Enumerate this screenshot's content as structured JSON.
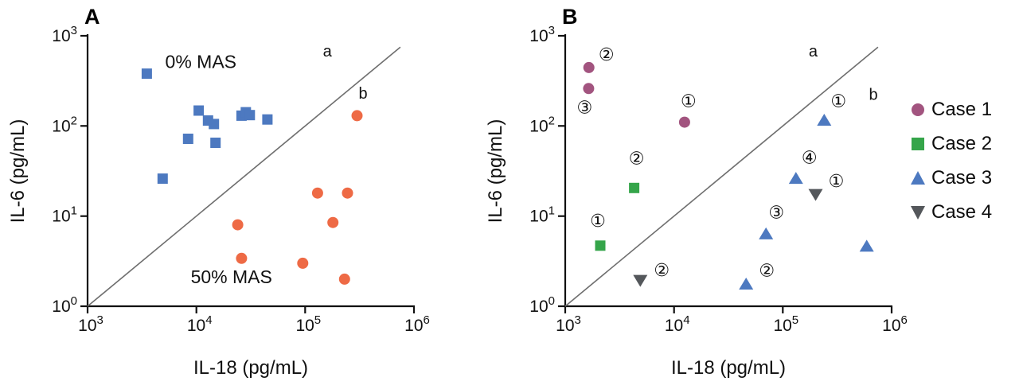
{
  "legend": {
    "items": [
      {
        "label": "Case 1",
        "marker": "circle",
        "color": "#a2547f"
      },
      {
        "label": "Case 2",
        "marker": "square",
        "color": "#35a54a"
      },
      {
        "label": "Case 3",
        "marker": "triangle-up",
        "color": "#4d79c0"
      },
      {
        "label": "Case 4",
        "marker": "triangle-down",
        "color": "#54575b"
      }
    ]
  },
  "chart_data": [
    {
      "type": "scatter",
      "panel_label": "A",
      "xlabel": "IL-18 (pg/mL)",
      "ylabel": "IL-6 (pg/mL)",
      "xscale": "log",
      "yscale": "log",
      "xlim": [
        1000,
        1000000
      ],
      "ylim": [
        1,
        1000
      ],
      "xticks": [
        1000,
        10000,
        100000,
        1000000
      ],
      "yticks": [
        1,
        10,
        100,
        1000
      ],
      "xtick_labels": [
        "10^3",
        "10^4",
        "10^5",
        "10^6"
      ],
      "ytick_labels": [
        "10^0",
        "10^1",
        "10^2",
        "10^3"
      ],
      "grid": false,
      "reference_line": {
        "x1": 1000,
        "y1": 1,
        "x2": 750000,
        "y2": 750,
        "color": "#6e6e6e",
        "labels": [
          {
            "text": "a",
            "x": 160000,
            "y": 590
          },
          {
            "text": "b",
            "x": 340000,
            "y": 200
          }
        ]
      },
      "annotations": [
        {
          "text": "0% MAS",
          "x": 11000,
          "y": 440
        },
        {
          "text": "50% MAS",
          "x": 21000,
          "y": 1.8
        }
      ],
      "series": [
        {
          "name": "0% MAS",
          "marker": "square",
          "color": "#4d79c0",
          "points": [
            {
              "x": 3500,
              "y": 380
            },
            {
              "x": 4900,
              "y": 26
            },
            {
              "x": 8400,
              "y": 72
            },
            {
              "x": 10500,
              "y": 148
            },
            {
              "x": 12800,
              "y": 115
            },
            {
              "x": 14500,
              "y": 105
            },
            {
              "x": 15000,
              "y": 65
            },
            {
              "x": 26000,
              "y": 130
            },
            {
              "x": 28500,
              "y": 142
            },
            {
              "x": 31000,
              "y": 132
            },
            {
              "x": 45000,
              "y": 118
            }
          ]
        },
        {
          "name": "50% MAS",
          "marker": "circle",
          "color": "#ee6a45",
          "points": [
            {
              "x": 24000,
              "y": 8
            },
            {
              "x": 26000,
              "y": 3.4
            },
            {
              "x": 95000,
              "y": 3
            },
            {
              "x": 130000,
              "y": 18
            },
            {
              "x": 180000,
              "y": 8.5
            },
            {
              "x": 245000,
              "y": 18
            },
            {
              "x": 230000,
              "y": 2
            },
            {
              "x": 300000,
              "y": 130
            }
          ]
        }
      ]
    },
    {
      "type": "scatter",
      "panel_label": "B",
      "xlabel": "IL-18 (pg/mL)",
      "ylabel": "IL-6 (pg/mL)",
      "xscale": "log",
      "yscale": "log",
      "xlim": [
        1000,
        1000000
      ],
      "ylim": [
        1,
        1000
      ],
      "xticks": [
        1000,
        10000,
        100000,
        1000000
      ],
      "yticks": [
        1,
        10,
        100,
        1000
      ],
      "xtick_labels": [
        "10^3",
        "10^4",
        "10^5",
        "10^6"
      ],
      "ytick_labels": [
        "10^0",
        "10^1",
        "10^2",
        "10^3"
      ],
      "grid": false,
      "reference_line": {
        "x1": 1000,
        "y1": 1,
        "x2": 750000,
        "y2": 750,
        "color": "#6e6e6e",
        "labels": [
          {
            "text": "a",
            "x": 190000,
            "y": 590
          },
          {
            "text": "b",
            "x": 680000,
            "y": 195
          }
        ]
      },
      "annotations": [],
      "series": [
        {
          "name": "Case 1",
          "marker": "circle",
          "color": "#a2547f",
          "points": [
            {
              "x": 1650,
              "y": 445,
              "label": "②",
              "ldx": 22,
              "ldy": -16
            },
            {
              "x": 1640,
              "y": 260,
              "label": "③",
              "ldx": -5,
              "ldy": 24
            },
            {
              "x": 12500,
              "y": 110,
              "label": "①",
              "ldx": 5,
              "ldy": -26
            }
          ]
        },
        {
          "name": "Case 2",
          "marker": "square",
          "color": "#35a54a",
          "points": [
            {
              "x": 4300,
              "y": 20.5,
              "label": "②",
              "ldx": 3,
              "ldy": -37
            },
            {
              "x": 2100,
              "y": 4.7,
              "label": "①",
              "ldx": -3,
              "ldy": -31
            }
          ]
        },
        {
          "name": "Case 3",
          "marker": "triangle-up",
          "color": "#4d79c0",
          "points": [
            {
              "x": 240000,
              "y": 115,
              "label": "①",
              "ldx": 18,
              "ldy": -24
            },
            {
              "x": 132000,
              "y": 26,
              "label": "④",
              "ldx": 17,
              "ldy": -26
            },
            {
              "x": 70000,
              "y": 6.3,
              "label": "③",
              "ldx": 13,
              "ldy": -27
            },
            {
              "x": 46000,
              "y": 1.75,
              "label": "②",
              "ldx": 26,
              "ldy": -17
            },
            {
              "x": 590000,
              "y": 4.6
            }
          ]
        },
        {
          "name": "Case 4",
          "marker": "triangle-down",
          "color": "#54575b",
          "points": [
            {
              "x": 200000,
              "y": 17.5,
              "label": "①",
              "ldx": 26,
              "ldy": -16
            },
            {
              "x": 4900,
              "y": 1.95,
              "label": "②",
              "ldx": 27,
              "ldy": -12
            }
          ]
        }
      ]
    }
  ]
}
